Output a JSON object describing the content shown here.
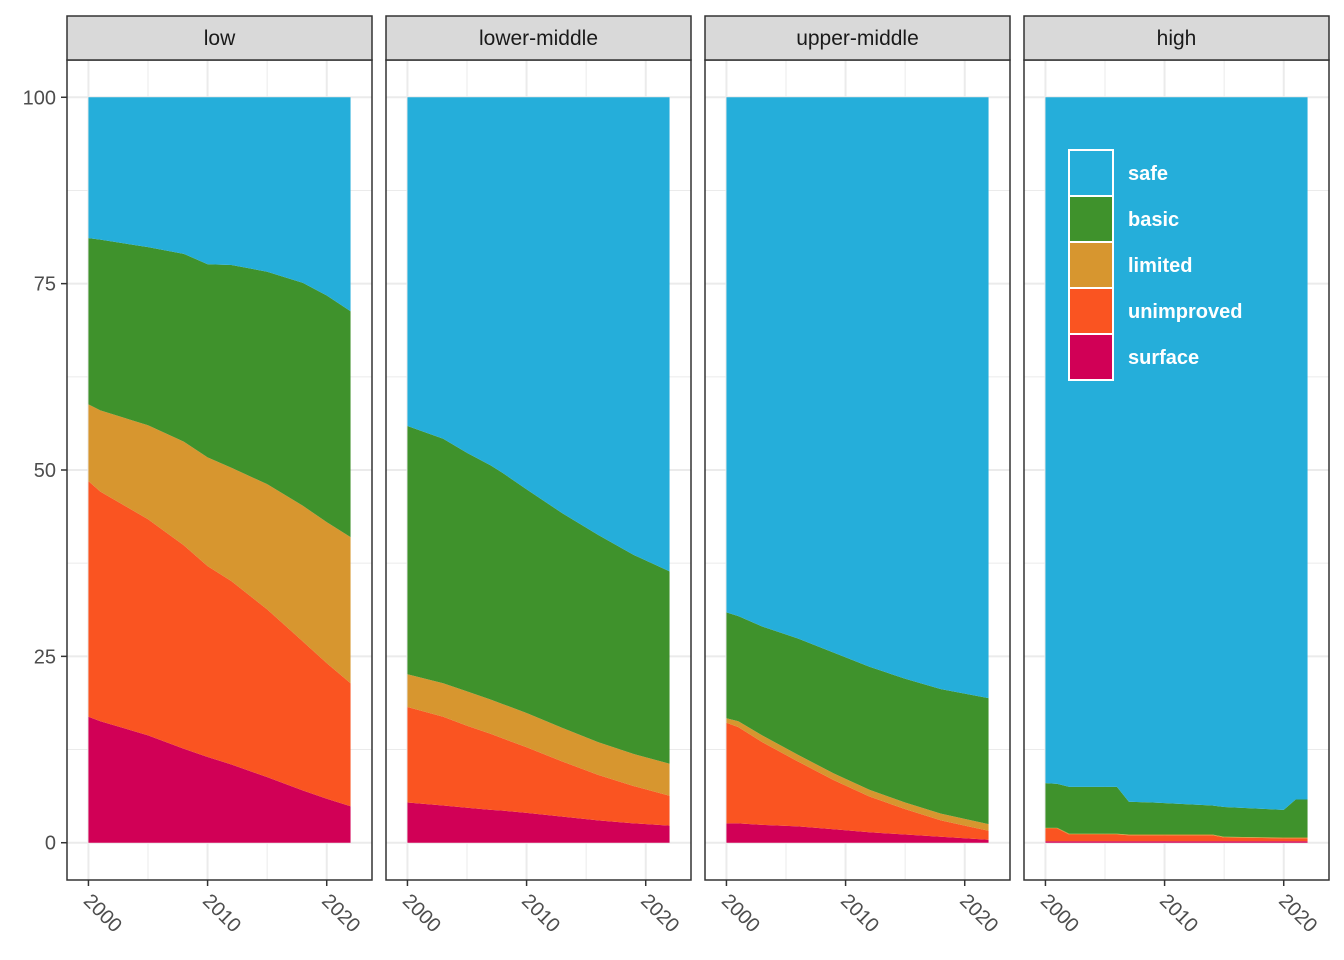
{
  "chart_data": {
    "type": "area",
    "stacked": true,
    "title": "",
    "xlabel": "",
    "ylabel": "",
    "xlim": [
      1998.2,
      2023.8
    ],
    "ylim": [
      -5,
      105
    ],
    "x_ticks": [
      2000,
      2010,
      2020
    ],
    "y_ticks": [
      0,
      25,
      50,
      75,
      100
    ],
    "grid": true,
    "legend_position": "inside-top-left of last panel",
    "legend_labels": [
      "safe",
      "basic",
      "limited",
      "unimproved",
      "surface"
    ],
    "stack_order_bottom_to_top": [
      "surface",
      "unimproved",
      "limited",
      "basic",
      "safe"
    ],
    "colors": {
      "safe": "#25AEDA",
      "basic": "#3F922C",
      "limited": "#D7962F",
      "unimproved": "#FA5421",
      "surface": "#D10056",
      "strip_fill": "#d9d9d9",
      "grid": "#ebebeb"
    },
    "panels": [
      {
        "label": "low",
        "x": [
          2000,
          2001,
          2005,
          2008,
          2010,
          2012,
          2015,
          2018,
          2020,
          2022
        ],
        "series": [
          {
            "name": "surface",
            "values": [
              16.9,
              16.3,
              14.4,
              12.6,
              11.5,
              10.5,
              8.8,
              7.0,
              5.9,
              4.9
            ]
          },
          {
            "name": "unimproved",
            "values": [
              31.6,
              30.8,
              29.0,
              27.3,
              25.6,
              24.6,
              22.5,
              20.0,
              18.2,
              16.5
            ]
          },
          {
            "name": "limited",
            "values": [
              10.3,
              10.9,
              12.6,
              13.9,
              14.6,
              15.2,
              16.8,
              18.2,
              18.9,
              19.6
            ]
          },
          {
            "name": "basic",
            "values": [
              22.3,
              22.9,
              23.9,
              25.2,
              25.9,
              27.2,
              28.5,
              29.9,
              30.4,
              30.3
            ]
          },
          {
            "name": "safe",
            "values": [
              18.9,
              19.1,
              20.1,
              21.0,
              22.4,
              22.5,
              23.4,
              24.9,
              26.6,
              28.7
            ]
          }
        ]
      },
      {
        "label": "lower-middle",
        "x": [
          2000,
          2003,
          2005,
          2007,
          2008,
          2010,
          2013,
          2016,
          2019,
          2022
        ],
        "series": [
          {
            "name": "surface",
            "values": [
              5.4,
              5.0,
              4.7,
              4.4,
              4.3,
              4.0,
              3.5,
              3.0,
              2.6,
              2.3
            ]
          },
          {
            "name": "unimproved",
            "values": [
              12.8,
              11.9,
              11.0,
              10.2,
              9.7,
              8.8,
              7.4,
              6.1,
              5.0,
              4.0
            ]
          },
          {
            "name": "limited",
            "values": [
              4.4,
              4.5,
              4.6,
              4.6,
              4.6,
              4.6,
              4.5,
              4.4,
              4.3,
              4.3
            ]
          },
          {
            "name": "basic",
            "values": [
              33.3,
              32.8,
              32.0,
              31.4,
              31.0,
              30.0,
              28.8,
              27.8,
              26.7,
              25.8
            ]
          },
          {
            "name": "safe",
            "values": [
              44.1,
              45.8,
              47.7,
              49.4,
              50.4,
              52.6,
              55.8,
              58.7,
              61.4,
              63.6
            ]
          }
        ]
      },
      {
        "label": "upper-middle",
        "x": [
          2000,
          2001,
          2003,
          2006,
          2009,
          2012,
          2015,
          2018,
          2020,
          2022
        ],
        "series": [
          {
            "name": "surface",
            "values": [
              2.6,
              2.6,
              2.4,
              2.2,
              1.8,
              1.4,
              1.1,
              0.8,
              0.6,
              0.4
            ]
          },
          {
            "name": "unimproved",
            "values": [
              13.5,
              12.9,
              11.1,
              8.7,
              6.6,
              4.8,
              3.4,
              2.2,
              1.7,
              1.2
            ]
          },
          {
            "name": "limited",
            "values": [
              0.6,
              0.8,
              0.9,
              0.9,
              0.9,
              0.9,
              0.9,
              0.9,
              0.9,
              0.9
            ]
          },
          {
            "name": "basic",
            "values": [
              14.2,
              14.1,
              14.6,
              15.6,
              16.2,
              16.5,
              16.6,
              16.7,
              16.8,
              16.9
            ]
          },
          {
            "name": "safe",
            "values": [
              69.1,
              69.6,
              71.0,
              72.6,
              74.5,
              76.4,
              78.0,
              79.4,
              80.0,
              80.6
            ]
          }
        ]
      },
      {
        "label": "high",
        "x": [
          2000,
          2001,
          2002,
          2006,
          2007,
          2009,
          2014,
          2015,
          2020,
          2021,
          2022
        ],
        "series": [
          {
            "name": "surface",
            "values": [
              0.2,
              0.2,
              0.2,
              0.2,
              0.2,
              0.2,
              0.2,
              0.2,
              0.2,
              0.2,
              0.2
            ]
          },
          {
            "name": "unimproved",
            "values": [
              1.7,
              1.7,
              0.9,
              0.9,
              0.8,
              0.8,
              0.8,
              0.5,
              0.4,
              0.4,
              0.4
            ]
          },
          {
            "name": "limited",
            "values": [
              0.1,
              0.1,
              0.1,
              0.1,
              0.1,
              0.1,
              0.1,
              0.1,
              0.1,
              0.1,
              0.1
            ]
          },
          {
            "name": "basic",
            "values": [
              6.0,
              5.9,
              6.3,
              6.3,
              4.4,
              4.3,
              3.9,
              4.0,
              3.7,
              5.1,
              5.1
            ]
          },
          {
            "name": "safe",
            "values": [
              92.0,
              92.1,
              92.5,
              92.5,
              94.5,
              94.6,
              95.0,
              95.2,
              95.6,
              94.2,
              94.2
            ]
          }
        ]
      }
    ]
  }
}
